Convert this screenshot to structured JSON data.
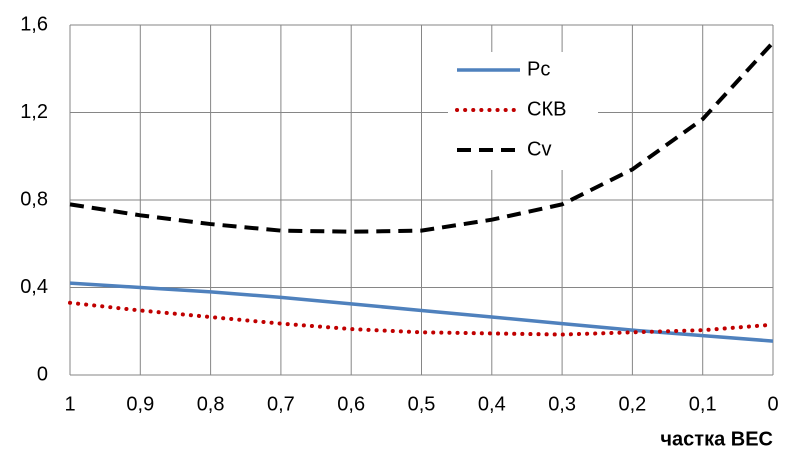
{
  "chart_data": {
    "type": "line",
    "x_label": "частка ВЕС",
    "categories": [
      "1",
      "0,9",
      "0,8",
      "0,7",
      "0,6",
      "0,5",
      "0,4",
      "0,3",
      "0,2",
      "0,1",
      "0"
    ],
    "series": [
      {
        "name": "Pc",
        "color": "#4f81bd",
        "line_style": "solid",
        "values": [
          0.42,
          0.4,
          0.38,
          0.355,
          0.325,
          0.295,
          0.265,
          0.235,
          0.205,
          0.18,
          0.155
        ]
      },
      {
        "name": "СКВ",
        "color": "#c00000",
        "line_style": "dot",
        "values": [
          0.33,
          0.295,
          0.265,
          0.235,
          0.21,
          0.195,
          0.19,
          0.185,
          0.195,
          0.205,
          0.23
        ]
      },
      {
        "name": "Cv",
        "color": "#000000",
        "line_style": "dash",
        "values": [
          0.78,
          0.73,
          0.69,
          0.66,
          0.655,
          0.66,
          0.71,
          0.78,
          0.94,
          1.17,
          1.52
        ]
      }
    ],
    "ylim": [
      0,
      1.6
    ],
    "yticks": [
      0,
      {
        "value": 0.4,
        "label": "0,4"
      },
      {
        "value": 0.8,
        "label": "0,8"
      },
      {
        "value": 1.2,
        "label": "1,2"
      },
      {
        "value": 1.6,
        "label": "1,6"
      }
    ],
    "grid": true,
    "legend": "upper-right"
  }
}
